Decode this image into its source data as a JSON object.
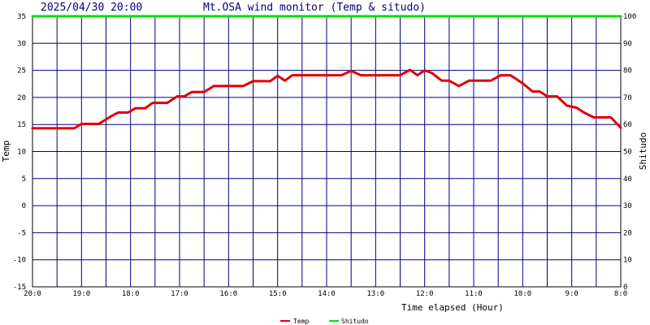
{
  "header": {
    "datetime": "2025/04/30 20:00",
    "title": "Mt.OSA wind monitor (Temp & situdo)"
  },
  "chart_data": {
    "type": "line",
    "x_ticks": [
      "20:0",
      "19:0",
      "18:0",
      "17:0",
      "16:0",
      "15:0",
      "14:0",
      "13:0",
      "12:0",
      "11:0",
      "10:0",
      "9:0",
      "8:0"
    ],
    "xlabel": "Time elapsed (Hour)",
    "ylabel_left": "Temp",
    "ylabel_right": "Shitudo",
    "ylim_left": [
      -15,
      35
    ],
    "ylim_right": [
      0,
      100
    ],
    "y_ticks_left": [
      "35",
      "30",
      "25",
      "20",
      "15",
      "10",
      "5",
      "0",
      "-5",
      "-10",
      "-15"
    ],
    "y_ticks_right": [
      "100",
      "90",
      "80",
      "70",
      "60",
      "50",
      "40",
      "30",
      "20",
      "10",
      "0"
    ],
    "x_range_hours": [
      0,
      12
    ],
    "grid": true,
    "legend_position": "bottom-center",
    "series": [
      {
        "name": "Temp",
        "axis": "left",
        "color": "#e00000",
        "points": [
          [
            0,
            14.3
          ],
          [
            0.85,
            14.3
          ],
          [
            1.0,
            15.1
          ],
          [
            1.35,
            15.1
          ],
          [
            1.6,
            16.5
          ],
          [
            1.75,
            17.2
          ],
          [
            1.95,
            17.2
          ],
          [
            2.1,
            18.0
          ],
          [
            2.3,
            18.0
          ],
          [
            2.45,
            19.0
          ],
          [
            2.75,
            19.0
          ],
          [
            2.95,
            20.2
          ],
          [
            3.1,
            20.2
          ],
          [
            3.25,
            21.0
          ],
          [
            3.5,
            21.0
          ],
          [
            3.7,
            22.1
          ],
          [
            4.3,
            22.1
          ],
          [
            4.5,
            23.0
          ],
          [
            4.85,
            23.0
          ],
          [
            5.0,
            24.0
          ],
          [
            5.15,
            23.1
          ],
          [
            5.3,
            24.1
          ],
          [
            6.3,
            24.1
          ],
          [
            6.5,
            24.9
          ],
          [
            6.7,
            24.1
          ],
          [
            7.5,
            24.1
          ],
          [
            7.7,
            25.1
          ],
          [
            7.85,
            24.1
          ],
          [
            8.0,
            25.0
          ],
          [
            8.15,
            24.5
          ],
          [
            8.35,
            23.1
          ],
          [
            8.5,
            23.1
          ],
          [
            8.7,
            22.1
          ],
          [
            8.9,
            23.1
          ],
          [
            9.35,
            23.1
          ],
          [
            9.55,
            24.1
          ],
          [
            9.75,
            24.1
          ],
          [
            10.0,
            22.6
          ],
          [
            10.2,
            21.1
          ],
          [
            10.35,
            21.1
          ],
          [
            10.5,
            20.2
          ],
          [
            10.7,
            20.2
          ],
          [
            10.9,
            18.5
          ],
          [
            11.1,
            18.1
          ],
          [
            11.25,
            17.2
          ],
          [
            11.45,
            16.3
          ],
          [
            11.8,
            16.3
          ],
          [
            12.0,
            14.4
          ]
        ]
      },
      {
        "name": "Shitudo",
        "axis": "right",
        "color": "#00e000",
        "points": [
          [
            0,
            100
          ],
          [
            12,
            100
          ]
        ]
      }
    ]
  }
}
